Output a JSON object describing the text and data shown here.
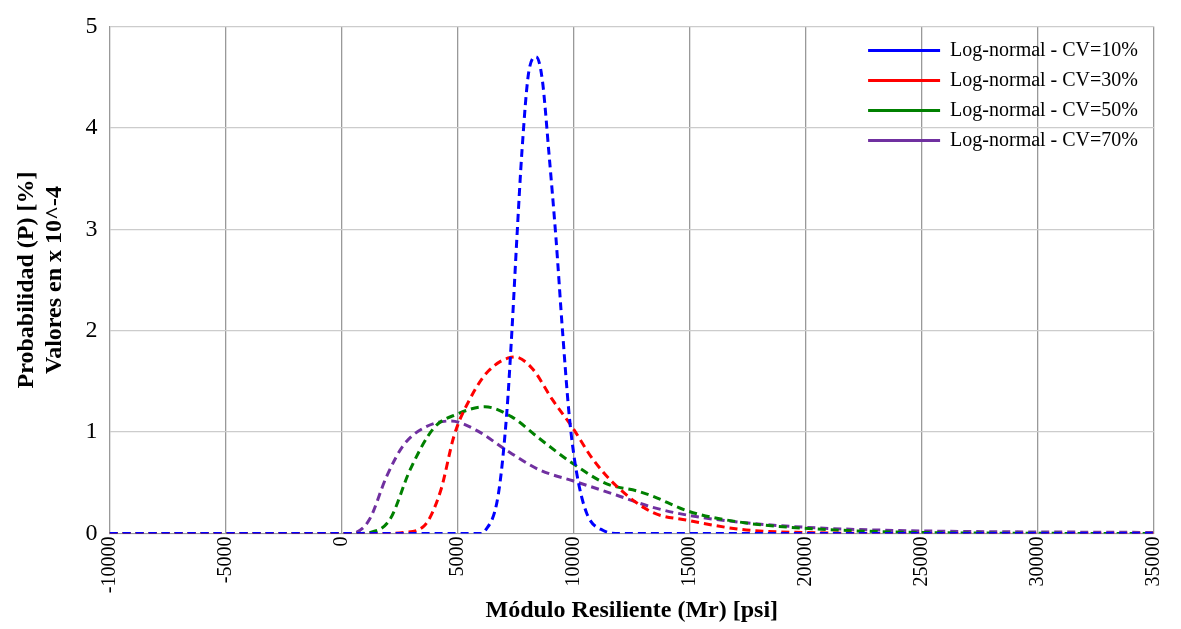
{
  "chart_data": {
    "type": "line",
    "xlabel": "Módulo Resiliente (Mr) [psi]",
    "ylabel": "Probabilidad (P) [%]\nValores en x 10^-4",
    "xlim": [
      -10000,
      35000
    ],
    "xticks": [
      -10000,
      -5000,
      0,
      5000,
      10000,
      15000,
      20000,
      25000,
      30000,
      35000
    ],
    "ylim": [
      0,
      5
    ],
    "yticks": [
      0,
      1,
      2,
      3,
      4,
      5
    ],
    "grid": true,
    "legend": "top right",
    "marker": "none",
    "line_style": "dashed",
    "series": [
      {
        "name": "Log-normal - CV=10%",
        "color": "#0000ff",
        "x": [
          -10000,
          6000,
          6160,
          6745,
          7110,
          7330,
          7550,
          7770,
          8060,
          8380,
          8640,
          8930,
          9230,
          9520,
          9810,
          10100,
          10540,
          11270,
          12000,
          35000
        ],
        "values": [
          0,
          0,
          0.02,
          0.38,
          1.18,
          1.98,
          2.92,
          3.78,
          4.55,
          4.7,
          4.48,
          3.75,
          2.92,
          1.98,
          1.15,
          0.63,
          0.21,
          0.03,
          0,
          0
        ]
      },
      {
        "name": "Log-normal - CV=30%",
        "color": "#ff0000",
        "x": [
          -10000,
          2000,
          2660,
          3530,
          4260,
          4850,
          5580,
          6310,
          7470,
          8200,
          9080,
          9960,
          10830,
          11830,
          13380,
          14930,
          17240,
          20000,
          25000,
          35000
        ],
        "values": [
          0,
          0,
          0.01,
          0.07,
          0.42,
          0.97,
          1.35,
          1.6,
          1.74,
          1.63,
          1.32,
          1.04,
          0.73,
          0.47,
          0.21,
          0.13,
          0.04,
          0.01,
          0,
          0
        ]
      },
      {
        "name": "Log-normal - CV=50%",
        "color": "#008000",
        "x": [
          -10000,
          600,
          1200,
          2080,
          2950,
          3970,
          5000,
          6170,
          7330,
          8500,
          9960,
          11420,
          12730,
          13380,
          14930,
          17240,
          20110,
          25000,
          35000
        ],
        "values": [
          0,
          0,
          0.01,
          0.14,
          0.63,
          1.04,
          1.18,
          1.25,
          1.15,
          0.94,
          0.69,
          0.49,
          0.42,
          0.37,
          0.22,
          0.11,
          0.05,
          0.01,
          0
        ]
      },
      {
        "name": "Log-normal - CV=70%",
        "color": "#7030a0",
        "x": [
          -10000,
          300,
          610,
          1200,
          1930,
          2660,
          3530,
          4700,
          5870,
          7040,
          8500,
          9960,
          11830,
          13380,
          14930,
          17240,
          20110,
          24000,
          35000
        ],
        "values": [
          0,
          0,
          0.01,
          0.14,
          0.56,
          0.87,
          1.04,
          1.11,
          1.01,
          0.83,
          0.63,
          0.52,
          0.38,
          0.26,
          0.18,
          0.11,
          0.06,
          0.03,
          0.01
        ]
      }
    ]
  }
}
